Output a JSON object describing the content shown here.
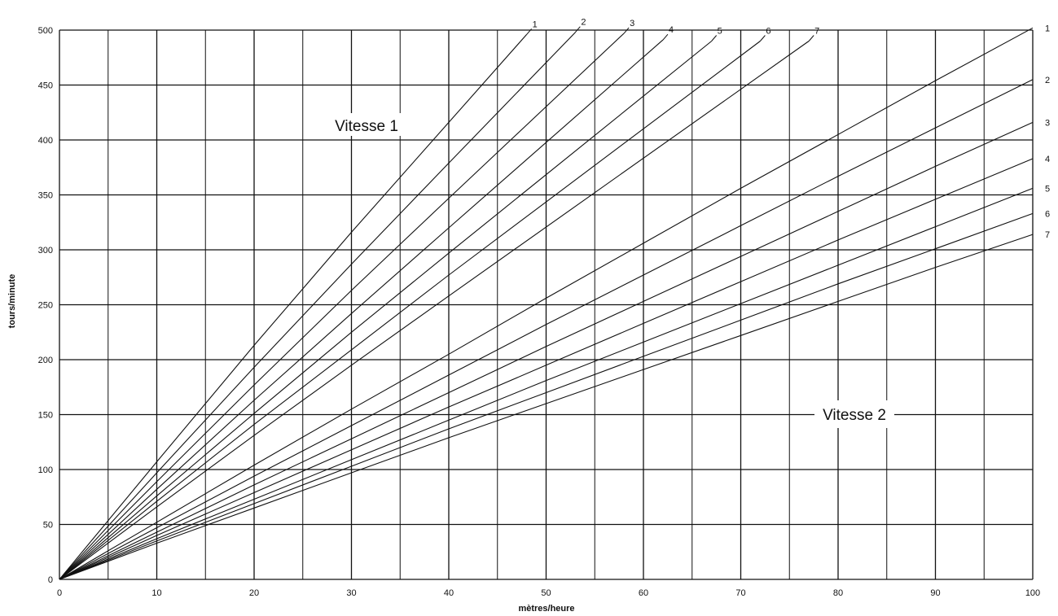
{
  "chart_data": {
    "type": "line",
    "title": "",
    "xlabel": "mètres/heure",
    "ylabel": "tours/minute",
    "xlim": [
      0,
      100
    ],
    "ylim": [
      0,
      500
    ],
    "x_ticks": [
      0,
      10,
      20,
      30,
      40,
      50,
      60,
      70,
      80,
      90,
      100
    ],
    "y_ticks": [
      0,
      50,
      100,
      150,
      200,
      250,
      300,
      350,
      400,
      450,
      500
    ],
    "grid": true,
    "legend": "none",
    "annotations": [
      "Vitesse 1",
      "Vitesse 2"
    ],
    "series": [
      {
        "name": "1",
        "group": "Vitesse 1",
        "x": [
          0,
          10,
          20,
          30,
          40,
          48
        ],
        "y": [
          0,
          107,
          213,
          316,
          416,
          496
        ]
      },
      {
        "name": "2",
        "group": "Vitesse 1",
        "x": [
          0,
          10,
          20,
          30,
          40,
          53
        ],
        "y": [
          0,
          97,
          193,
          287,
          379,
          498
        ]
      },
      {
        "name": "3",
        "group": "Vitesse 1",
        "x": [
          0,
          10,
          20,
          30,
          40,
          58
        ],
        "y": [
          0,
          89,
          177,
          263,
          347,
          497
        ]
      },
      {
        "name": "4",
        "group": "Vitesse 1",
        "x": [
          0,
          10,
          20,
          30,
          40,
          62
        ],
        "y": [
          0,
          82,
          163,
          242,
          320,
          491
        ]
      },
      {
        "name": "5",
        "group": "Vitesse 1",
        "x": [
          0,
          10,
          20,
          30,
          40,
          67
        ],
        "y": [
          0,
          76,
          151,
          225,
          297,
          490
        ]
      },
      {
        "name": "6",
        "group": "Vitesse 1",
        "x": [
          0,
          10,
          20,
          30,
          40,
          72
        ],
        "y": [
          0,
          71,
          141,
          209,
          277,
          490
        ]
      },
      {
        "name": "7",
        "group": "Vitesse 1",
        "x": [
          0,
          10,
          20,
          30,
          40,
          77
        ],
        "y": [
          0,
          66,
          131,
          195,
          258,
          490
        ]
      },
      {
        "name": "1",
        "group": "Vitesse 2",
        "x": [
          0,
          10,
          20,
          30,
          40,
          50,
          60,
          70,
          80,
          90,
          100
        ],
        "y": [
          0,
          52,
          104,
          155,
          205,
          256,
          306,
          356,
          405,
          454,
          502
        ]
      },
      {
        "name": "2",
        "group": "Vitesse 2",
        "x": [
          0,
          10,
          20,
          30,
          40,
          50,
          60,
          70,
          80,
          90,
          100
        ],
        "y": [
          0,
          47,
          94,
          140,
          186,
          232,
          277,
          322,
          367,
          411,
          455
        ]
      },
      {
        "name": "3",
        "group": "Vitesse 2",
        "x": [
          0,
          10,
          20,
          30,
          40,
          50,
          60,
          70,
          80,
          90,
          100
        ],
        "y": [
          0,
          43,
          86,
          128,
          170,
          212,
          253,
          294,
          335,
          376,
          416
        ]
      },
      {
        "name": "4",
        "group": "Vitesse 2",
        "x": [
          0,
          10,
          20,
          30,
          40,
          50,
          60,
          70,
          80,
          90,
          100
        ],
        "y": [
          0,
          40,
          79,
          118,
          157,
          195,
          233,
          271,
          309,
          346,
          383
        ]
      },
      {
        "name": "5",
        "group": "Vitesse 2",
        "x": [
          0,
          10,
          20,
          30,
          40,
          50,
          60,
          70,
          80,
          90,
          100
        ],
        "y": [
          0,
          37,
          73,
          109,
          145,
          181,
          216,
          251,
          286,
          321,
          356
        ]
      },
      {
        "name": "6",
        "group": "Vitesse 2",
        "x": [
          0,
          10,
          20,
          30,
          40,
          50,
          60,
          70,
          80,
          90,
          100
        ],
        "y": [
          0,
          35,
          69,
          103,
          137,
          170,
          203,
          236,
          269,
          301,
          333
        ]
      },
      {
        "name": "7",
        "group": "Vitesse 2",
        "x": [
          0,
          10,
          20,
          30,
          40,
          50,
          60,
          70,
          80,
          90,
          100
        ],
        "y": [
          0,
          33,
          65,
          97,
          129,
          160,
          191,
          222,
          253,
          284,
          314
        ]
      }
    ],
    "colors": {
      "line": "#111111",
      "grid": "#111111",
      "background": "#ffffff"
    }
  }
}
